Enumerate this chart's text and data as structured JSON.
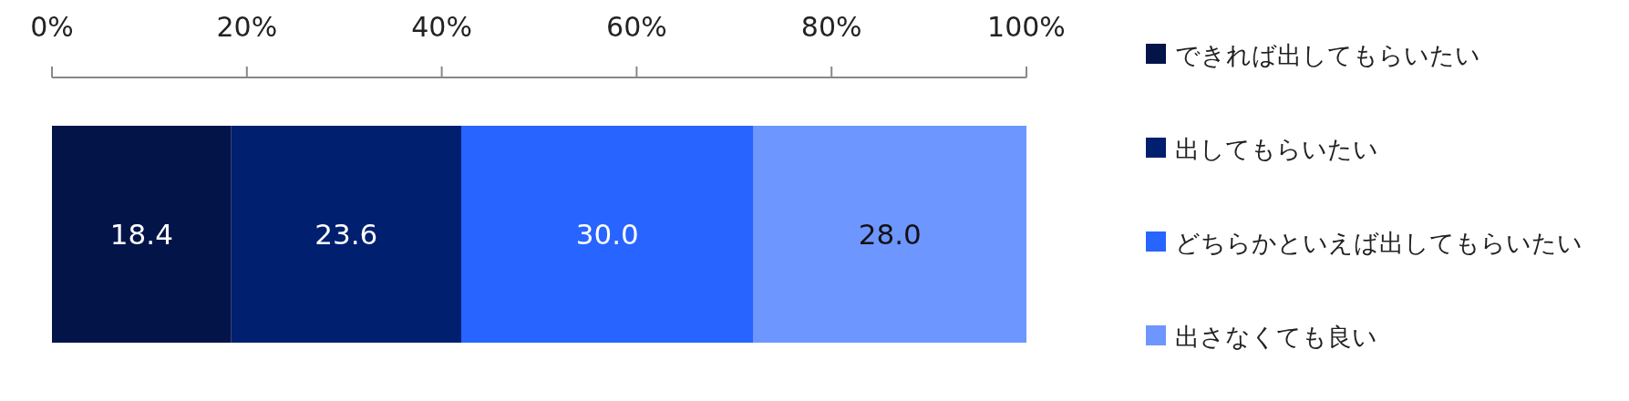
{
  "chart_data": {
    "type": "bar",
    "orientation": "horizontal",
    "stacked": true,
    "categories": [
      null
    ],
    "series": [
      {
        "name": "できれば出してもらいたい",
        "color": "#031449",
        "values": [
          18.4
        ],
        "value_labels": [
          "18.4"
        ]
      },
      {
        "name": "出してもらいたい",
        "color": "#001f6e",
        "values": [
          23.6
        ],
        "value_labels": [
          "23.6"
        ]
      },
      {
        "name": "どちらかといえば出してもらいたい",
        "color": "#2864ff",
        "values": [
          30.0
        ],
        "value_labels": [
          "30.0"
        ]
      },
      {
        "name": "出さなくても良い",
        "color": "#6e96ff",
        "values": [
          28.0
        ],
        "value_labels": [
          "28.0"
        ]
      }
    ],
    "xlim": [
      0,
      100
    ],
    "xticks": [
      {
        "value": 0,
        "label": "0%"
      },
      {
        "value": 20,
        "label": "20%"
      },
      {
        "value": 40,
        "label": "40%"
      },
      {
        "value": 60,
        "label": "60%"
      },
      {
        "value": 80,
        "label": "80%"
      },
      {
        "value": 100,
        "label": "100%"
      }
    ],
    "grid": false,
    "legend": "right",
    "tick_labels": "x"
  }
}
